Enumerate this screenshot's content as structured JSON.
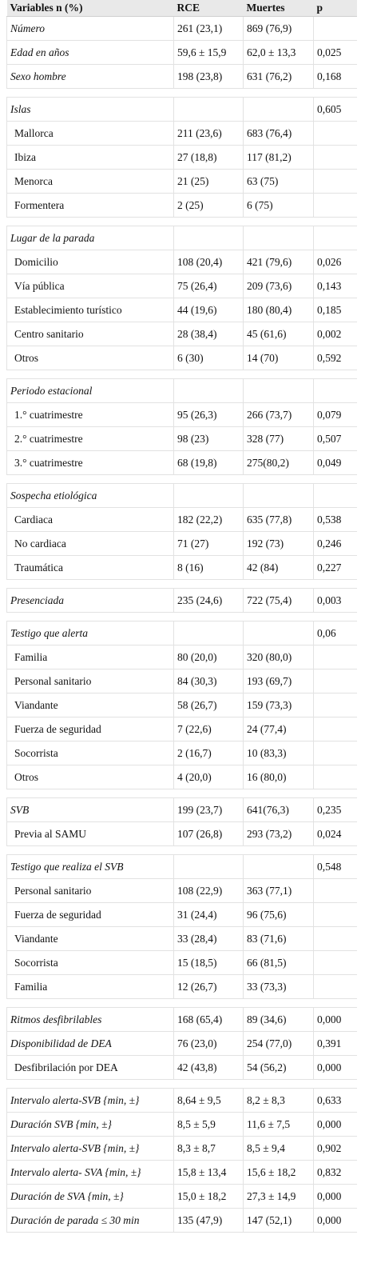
{
  "table": {
    "headers": [
      "Variables n (%)",
      "RCE",
      "Muertes",
      "p"
    ],
    "rows": [
      {
        "label": "Número",
        "style": "ital",
        "rce": "261 (23,1)",
        "muertes": "869 (76,9)",
        "p": ""
      },
      {
        "label": "Edad en años",
        "style": "ital",
        "rce": "59,6 ± 15,9",
        "muertes": "62,0 ± 13,3",
        "p": "0,025"
      },
      {
        "label": "Sexo hombre",
        "style": "ital",
        "rce": "198 (23,8)",
        "muertes": "631 (76,2)",
        "p": "0,168"
      },
      {
        "gap": true
      },
      {
        "label": "Islas",
        "style": "ital",
        "rce": "",
        "muertes": "",
        "p": "0,605"
      },
      {
        "label": "Mallorca",
        "style": "ind",
        "rce": "211 (23,6)",
        "muertes": "683 (76,4)",
        "p": ""
      },
      {
        "label": "Ibiza",
        "style": "ind",
        "rce": "27 (18,8)",
        "muertes": "117 (81,2)",
        "p": ""
      },
      {
        "label": "Menorca",
        "style": "ind",
        "rce": "21 (25)",
        "muertes": "63 (75)",
        "p": ""
      },
      {
        "label": "Formentera",
        "style": "ind",
        "rce": "2 (25)",
        "muertes": "6 (75)",
        "p": ""
      },
      {
        "gap": true
      },
      {
        "label": "Lugar de la parada",
        "style": "ital",
        "rce": "",
        "muertes": "",
        "p": ""
      },
      {
        "label": "Domicilio",
        "style": "ind",
        "rce": "108 (20,4)",
        "muertes": "421 (79,6)",
        "p": "0,026"
      },
      {
        "label": "Vía pública",
        "style": "ind",
        "rce": "75 (26,4)",
        "muertes": "209 (73,6)",
        "p": "0,143"
      },
      {
        "label": "Establecimiento turístico",
        "style": "ind",
        "rce": "44 (19,6)",
        "muertes": "180 (80,4)",
        "p": "0,185"
      },
      {
        "label": "Centro sanitario",
        "style": "ind",
        "rce": "28 (38,4)",
        "muertes": "45 (61,6)",
        "p": "0,002"
      },
      {
        "label": "Otros",
        "style": "ind",
        "rce": "6 (30)",
        "muertes": "14 (70)",
        "p": "0,592"
      },
      {
        "gap": true
      },
      {
        "label": "Periodo estacional",
        "style": "ital",
        "rce": "",
        "muertes": "",
        "p": ""
      },
      {
        "label": "1.° cuatrimestre",
        "style": "ind",
        "rce": "95 (26,3)",
        "muertes": "266 (73,7)",
        "p": "0,079"
      },
      {
        "label": "2.° cuatrimestre",
        "style": "ind",
        "rce": "98 (23)",
        "muertes": "328 (77)",
        "p": "0,507"
      },
      {
        "label": "3.° cuatrimestre",
        "style": "ind",
        "rce": "68 (19,8)",
        "muertes": "275(80,2)",
        "p": "0,049"
      },
      {
        "gap": true
      },
      {
        "label": "Sospecha etiológica",
        "style": "ital",
        "rce": "",
        "muertes": "",
        "p": ""
      },
      {
        "label": "Cardiaca",
        "style": "ind",
        "rce": "182 (22,2)",
        "muertes": "635 (77,8)",
        "p": "0,538"
      },
      {
        "label": "No cardiaca",
        "style": "ind",
        "rce": "71 (27)",
        "muertes": "192 (73)",
        "p": "0,246"
      },
      {
        "label": "Traumática",
        "style": "ind",
        "rce": "8 (16)",
        "muertes": "42 (84)",
        "p": "0,227"
      },
      {
        "gap": true
      },
      {
        "label": "Presenciada",
        "style": "ital",
        "rce": "235 (24,6)",
        "muertes": "722 (75,4)",
        "p": "0,003"
      },
      {
        "gap": true
      },
      {
        "label": "Testigo que alerta",
        "style": "ital",
        "rce": "",
        "muertes": "",
        "p": "0,06"
      },
      {
        "label": "Familia",
        "style": "ind",
        "rce": "80 (20,0)",
        "muertes": "320 (80,0)",
        "p": ""
      },
      {
        "label": "Personal sanitario",
        "style": "ind",
        "rce": "84 (30,3)",
        "muertes": "193 (69,7)",
        "p": ""
      },
      {
        "label": "Viandante",
        "style": "ind",
        "rce": "58 (26,7)",
        "muertes": "159 (73,3)",
        "p": ""
      },
      {
        "label": "Fuerza de seguridad",
        "style": "ind",
        "rce": "7 (22,6)",
        "muertes": "24 (77,4)",
        "p": ""
      },
      {
        "label": "Socorrista",
        "style": "ind",
        "rce": "2 (16,7)",
        "muertes": "10 (83,3)",
        "p": ""
      },
      {
        "label": "Otros",
        "style": "ind",
        "rce": "4 (20,0)",
        "muertes": "16 (80,0)",
        "p": ""
      },
      {
        "gap": true
      },
      {
        "label": "SVB",
        "style": "ital",
        "rce": "199 (23,7)",
        "muertes": "641(76,3)",
        "p": "0,235"
      },
      {
        "label": "Previa al SAMU",
        "style": "ind",
        "rce": "107 (26,8)",
        "muertes": "293 (73,2)",
        "p": "0,024"
      },
      {
        "gap": true
      },
      {
        "label": "Testigo que realiza el SVB",
        "style": "ital",
        "rce": "",
        "muertes": "",
        "p": "0,548"
      },
      {
        "label": "Personal sanitario",
        "style": "ind",
        "rce": "108 (22,9)",
        "muertes": "363 (77,1)",
        "p": ""
      },
      {
        "label": "Fuerza de seguridad",
        "style": "ind",
        "rce": "31 (24,4)",
        "muertes": "96 (75,6)",
        "p": ""
      },
      {
        "label": "Viandante",
        "style": "ind",
        "rce": "33 (28,4)",
        "muertes": "83 (71,6)",
        "p": ""
      },
      {
        "label": "Socorrista",
        "style": "ind",
        "rce": "15 (18,5)",
        "muertes": "66 (81,5)",
        "p": ""
      },
      {
        "label": "Familia",
        "style": "ind",
        "rce": "12 (26,7)",
        "muertes": "33 (73,3)",
        "p": ""
      },
      {
        "gap": true
      },
      {
        "label": "Ritmos desfibrilables",
        "style": "ital",
        "rce": "168 (65,4)",
        "muertes": "89 (34,6)",
        "p": "0,000"
      },
      {
        "label": "Disponibilidad de DEA",
        "style": "ital",
        "rce": "76 (23,0)",
        "muertes": "254 (77,0)",
        "p": "0,391"
      },
      {
        "label": "Desfibrilación por DEA",
        "style": "ind",
        "rce": "42 (43,8)",
        "muertes": "54 (56,2)",
        "p": "0,000"
      },
      {
        "gap": true
      },
      {
        "label": "Intervalo alerta-SVB {min, ±}",
        "style": "ital",
        "rce": "8,64 ± 9,5",
        "muertes": "8,2 ± 8,3",
        "p": "0,633"
      },
      {
        "label": "Duración SVB {min, ±}",
        "style": "ital",
        "rce": "8,5 ± 5,9",
        "muertes": "11,6 ± 7,5",
        "p": "0,000"
      },
      {
        "label": "Intervalo alerta-SVB {min, ±}",
        "style": "ital",
        "rce": "8,3 ± 8,7",
        "muertes": "8,5 ± 9,4",
        "p": "0,902"
      },
      {
        "label": "Intervalo alerta- SVA {min, ±}",
        "style": "ital",
        "rce": "15,8 ± 13,4",
        "muertes": "15,6 ± 18,2",
        "p": "0,832"
      },
      {
        "label": "Duración de SVA {min, ±}",
        "style": "ital",
        "rce": "15,0 ± 18,2",
        "muertes": "27,3 ± 14,9",
        "p": "0,000"
      },
      {
        "label": "Duración de parada ≤ 30 min",
        "style": "ital",
        "rce": "135 (47,9)",
        "muertes": "147 (52,1)",
        "p": "0,000"
      }
    ]
  }
}
